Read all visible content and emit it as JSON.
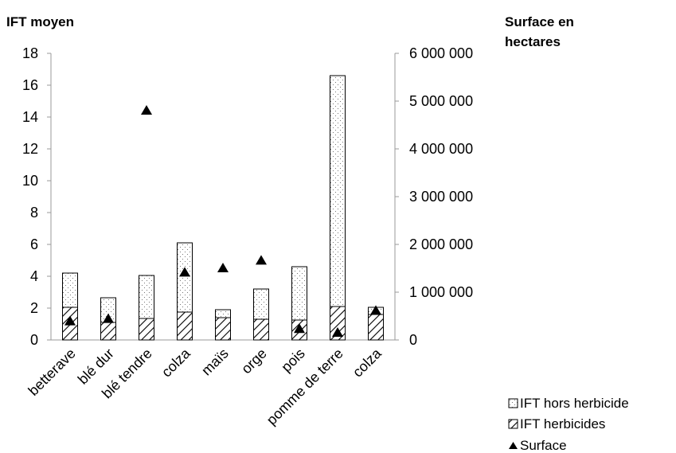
{
  "chart_data": {
    "type": "bar",
    "stacked": true,
    "categories": [
      "betterave",
      "blé dur",
      "blé tendre",
      "colza",
      "maïs",
      "orge",
      "pois",
      "pomme de terre",
      "colza"
    ],
    "series": [
      {
        "name": "IFT herbicides",
        "axis": "left",
        "pattern": "hatch",
        "values": [
          2.05,
          1.1,
          1.35,
          1.75,
          1.4,
          1.3,
          1.25,
          2.1,
          1.6
        ]
      },
      {
        "name": "IFT hors herbicide",
        "axis": "left",
        "pattern": "dots",
        "values": [
          2.15,
          1.55,
          2.7,
          4.35,
          0.5,
          1.9,
          3.35,
          14.5,
          0.45
        ]
      },
      {
        "name": "Surface",
        "axis": "right",
        "marker": "triangle",
        "values": [
          390000,
          440000,
          4800000,
          1410000,
          1500000,
          1660000,
          230000,
          150000,
          610000
        ]
      }
    ],
    "yleft": {
      "title": "IFT moyen",
      "ylim": [
        0,
        18
      ],
      "ticks": [
        0,
        2,
        4,
        6,
        8,
        10,
        12,
        14,
        16,
        18
      ]
    },
    "yright": {
      "title_lines": [
        "Surface en",
        "hectares"
      ],
      "ylim": [
        0,
        6000000
      ],
      "ticks": [
        "0",
        "1 000 000",
        "2 000 000",
        "3 000 000",
        "4 000 000",
        "5 000 000",
        "6 000 000"
      ]
    },
    "grid": false,
    "legend": {
      "position": "bottom-right",
      "items": [
        {
          "label": "IFT hors herbicide",
          "symbol": "dots"
        },
        {
          "label": "IFT herbicides",
          "symbol": "hatch"
        },
        {
          "label": "Surface",
          "symbol": "triangle"
        }
      ]
    }
  }
}
